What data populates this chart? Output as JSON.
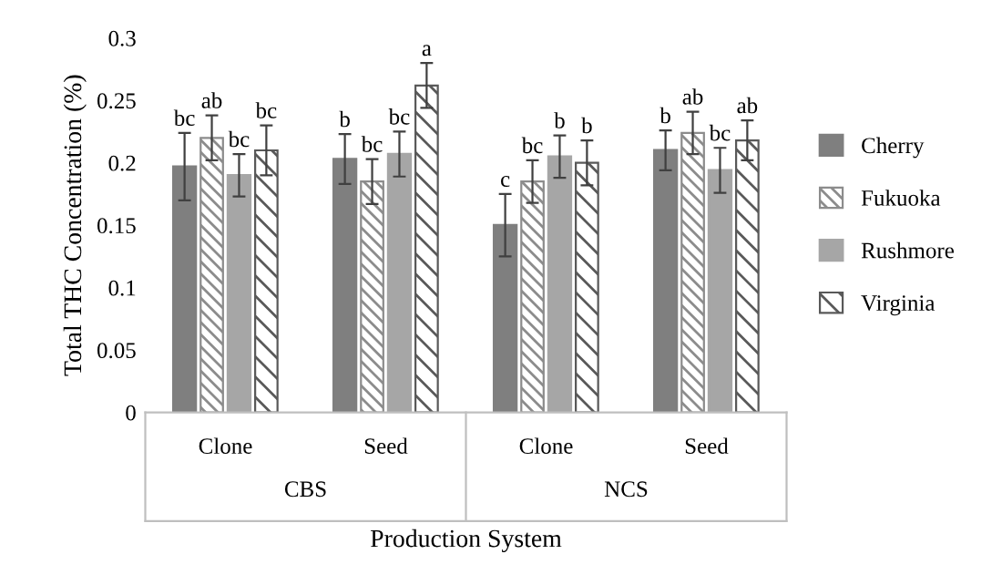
{
  "chart_data": {
    "type": "bar",
    "xlabel": "Production System",
    "ylabel": "Total THC Concentration (%)",
    "categories": [
      "Clone",
      "Seed",
      "Clone",
      "Seed"
    ],
    "series": [
      {
        "name": "Cherry",
        "color": "#7f7f7f",
        "values": [
          0.197,
          0.203,
          0.15,
          0.21
        ],
        "errors": [
          0.027,
          0.02,
          0.025,
          0.016
        ],
        "value_labels": [
          "bc",
          "b",
          "c",
          "b"
        ]
      },
      {
        "name": "Fukuoka",
        "color": "#8c8c8c",
        "values": [
          0.22,
          0.185,
          0.185,
          0.224
        ],
        "errors": [
          0.018,
          0.018,
          0.017,
          0.017
        ],
        "value_labels": [
          "ab",
          "bc",
          "bc",
          "ab"
        ]
      },
      {
        "name": "Rushmore",
        "color": "#a6a6a6",
        "values": [
          0.19,
          0.207,
          0.205,
          0.194
        ],
        "errors": [
          0.017,
          0.018,
          0.017,
          0.018
        ],
        "value_labels": [
          "bc",
          "bc",
          "b",
          "bc"
        ]
      },
      {
        "name": "Virginia",
        "color": "#595959",
        "values": [
          0.21,
          0.262,
          0.2,
          0.218
        ],
        "errors": [
          0.02,
          0.018,
          0.018,
          0.016
        ],
        "value_labels": [
          "bc",
          "a",
          "b",
          "ab"
        ]
      }
    ],
    "annotations": [
      "CBS",
      "NCS"
    ],
    "ylim": [
      0,
      0.3
    ],
    "yticks": [
      0,
      0.05,
      0.1,
      0.15,
      0.2,
      0.25,
      0.3
    ],
    "legend": "right",
    "grid": false
  }
}
